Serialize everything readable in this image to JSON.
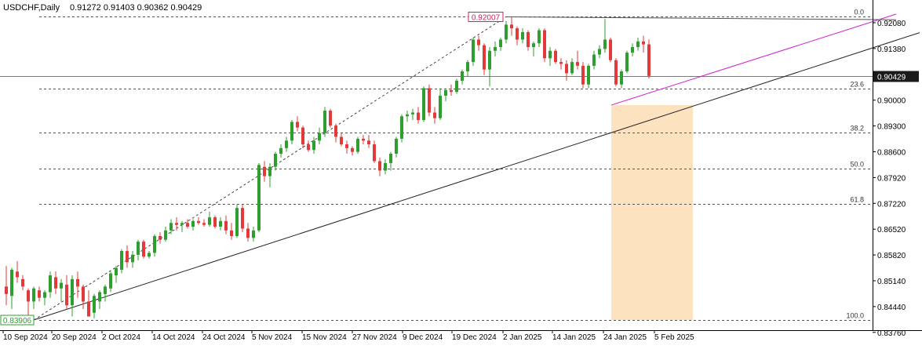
{
  "header": {
    "symbol_timeframe": "USDCHF,Daily",
    "ohlc": "0.91272 0.91403 0.90362 0.90429"
  },
  "colors": {
    "bull": "#2e9e2e",
    "bear": "#e03a3a",
    "grid_dash": "#555555",
    "trendline": "#222222",
    "channel": "#d020d0",
    "zone": "#fde2c0",
    "price_label_bg": "#1a1a1a"
  },
  "price_axis": {
    "ticks": [
      "0.92080",
      "0.91380",
      "0.90680",
      "0.90000",
      "0.89300",
      "0.88600",
      "0.87920",
      "0.87220",
      "0.86520",
      "0.85820",
      "0.85140",
      "0.84440",
      "0.83760"
    ]
  },
  "time_axis": {
    "ticks": [
      "10 Sep 2024",
      "20 Sep 2024",
      "2 Oct 2024",
      "14 Oct 2024",
      "24 Oct 2024",
      "5 Nov 2024",
      "15 Nov 2024",
      "27 Nov 2024",
      "9 Dec 2024",
      "19 Dec 2024",
      "2 Jan 2025",
      "14 Jan 2025",
      "24 Jan 2025",
      "5 Feb 2025"
    ]
  },
  "annotations": {
    "high_label": "0.92007",
    "low_label": "0.83906",
    "current_price": "0.90429"
  },
  "fibonacci": {
    "levels": [
      {
        "label": "0.0",
        "price": 0.92007
      },
      {
        "label": "23.6",
        "price": 0.90095
      },
      {
        "label": "38.2",
        "price": 0.88912
      },
      {
        "label": "50.0",
        "price": 0.87957
      },
      {
        "label": "61.8",
        "price": 0.87001
      },
      {
        "label": "100.0",
        "price": 0.83906
      }
    ]
  },
  "chart_data": {
    "type": "candlestick",
    "title": "USDCHF,Daily",
    "ylim": [
      0.837,
      0.9225
    ],
    "x_range": [
      "2024-09-10",
      "2025-02-11"
    ],
    "current_price": 0.90429,
    "candles": [
      {
        "o": 0.848,
        "h": 0.8535,
        "l": 0.843,
        "c": 0.846
      },
      {
        "o": 0.8455,
        "h": 0.853,
        "l": 0.842,
        "c": 0.8525
      },
      {
        "o": 0.852,
        "h": 0.8548,
        "l": 0.849,
        "c": 0.8505
      },
      {
        "o": 0.85,
        "h": 0.851,
        "l": 0.847,
        "c": 0.848
      },
      {
        "o": 0.847,
        "h": 0.8475,
        "l": 0.839,
        "c": 0.844
      },
      {
        "o": 0.844,
        "h": 0.848,
        "l": 0.842,
        "c": 0.8475
      },
      {
        "o": 0.847,
        "h": 0.848,
        "l": 0.844,
        "c": 0.845
      },
      {
        "o": 0.845,
        "h": 0.847,
        "l": 0.843,
        "c": 0.8465
      },
      {
        "o": 0.8465,
        "h": 0.852,
        "l": 0.845,
        "c": 0.851
      },
      {
        "o": 0.8505,
        "h": 0.852,
        "l": 0.846,
        "c": 0.8475
      },
      {
        "o": 0.8475,
        "h": 0.85,
        "l": 0.844,
        "c": 0.849
      },
      {
        "o": 0.8485,
        "h": 0.851,
        "l": 0.842,
        "c": 0.843
      },
      {
        "o": 0.843,
        "h": 0.851,
        "l": 0.84,
        "c": 0.85
      },
      {
        "o": 0.85,
        "h": 0.852,
        "l": 0.845,
        "c": 0.848
      },
      {
        "o": 0.848,
        "h": 0.8485,
        "l": 0.842,
        "c": 0.844
      },
      {
        "o": 0.844,
        "h": 0.847,
        "l": 0.84,
        "c": 0.84
      },
      {
        "o": 0.841,
        "h": 0.846,
        "l": 0.8395,
        "c": 0.8455
      },
      {
        "o": 0.844,
        "h": 0.847,
        "l": 0.842,
        "c": 0.8465
      },
      {
        "o": 0.846,
        "h": 0.8485,
        "l": 0.844,
        "c": 0.848
      },
      {
        "o": 0.8475,
        "h": 0.852,
        "l": 0.8465,
        "c": 0.8515
      },
      {
        "o": 0.851,
        "h": 0.8535,
        "l": 0.849,
        "c": 0.853
      },
      {
        "o": 0.8525,
        "h": 0.858,
        "l": 0.8515,
        "c": 0.8575
      },
      {
        "o": 0.8575,
        "h": 0.859,
        "l": 0.853,
        "c": 0.8545
      },
      {
        "o": 0.8545,
        "h": 0.8575,
        "l": 0.853,
        "c": 0.8565
      },
      {
        "o": 0.8565,
        "h": 0.8605,
        "l": 0.855,
        "c": 0.86
      },
      {
        "o": 0.86,
        "h": 0.8605,
        "l": 0.8555,
        "c": 0.856
      },
      {
        "o": 0.856,
        "h": 0.8575,
        "l": 0.8555,
        "c": 0.857
      },
      {
        "o": 0.857,
        "h": 0.862,
        "l": 0.856,
        "c": 0.8615
      },
      {
        "o": 0.8615,
        "h": 0.8625,
        "l": 0.8595,
        "c": 0.8605
      },
      {
        "o": 0.8605,
        "h": 0.864,
        "l": 0.86,
        "c": 0.863
      },
      {
        "o": 0.863,
        "h": 0.866,
        "l": 0.862,
        "c": 0.865
      },
      {
        "o": 0.865,
        "h": 0.8665,
        "l": 0.863,
        "c": 0.8645
      },
      {
        "o": 0.8645,
        "h": 0.8655,
        "l": 0.8625,
        "c": 0.865
      },
      {
        "o": 0.865,
        "h": 0.866,
        "l": 0.8635,
        "c": 0.864
      },
      {
        "o": 0.864,
        "h": 0.866,
        "l": 0.863,
        "c": 0.8655
      },
      {
        "o": 0.8655,
        "h": 0.8665,
        "l": 0.8645,
        "c": 0.865
      },
      {
        "o": 0.865,
        "h": 0.866,
        "l": 0.864,
        "c": 0.8645
      },
      {
        "o": 0.8645,
        "h": 0.868,
        "l": 0.864,
        "c": 0.8665
      },
      {
        "o": 0.8665,
        "h": 0.867,
        "l": 0.8635,
        "c": 0.864
      },
      {
        "o": 0.864,
        "h": 0.8665,
        "l": 0.863,
        "c": 0.8655
      },
      {
        "o": 0.8655,
        "h": 0.867,
        "l": 0.862,
        "c": 0.863
      },
      {
        "o": 0.863,
        "h": 0.865,
        "l": 0.8605,
        "c": 0.8615
      },
      {
        "o": 0.8615,
        "h": 0.87,
        "l": 0.861,
        "c": 0.869
      },
      {
        "o": 0.869,
        "h": 0.87,
        "l": 0.8625,
        "c": 0.8635
      },
      {
        "o": 0.8635,
        "h": 0.865,
        "l": 0.86,
        "c": 0.861
      },
      {
        "o": 0.861,
        "h": 0.864,
        "l": 0.86,
        "c": 0.863
      },
      {
        "o": 0.863,
        "h": 0.881,
        "l": 0.8625,
        "c": 0.8805
      },
      {
        "o": 0.88,
        "h": 0.8815,
        "l": 0.876,
        "c": 0.8775
      },
      {
        "o": 0.8775,
        "h": 0.881,
        "l": 0.8745,
        "c": 0.88
      },
      {
        "o": 0.88,
        "h": 0.884,
        "l": 0.879,
        "c": 0.8835
      },
      {
        "o": 0.8835,
        "h": 0.886,
        "l": 0.8825,
        "c": 0.885
      },
      {
        "o": 0.885,
        "h": 0.888,
        "l": 0.884,
        "c": 0.887
      },
      {
        "o": 0.887,
        "h": 0.8925,
        "l": 0.886,
        "c": 0.892
      },
      {
        "o": 0.892,
        "h": 0.8935,
        "l": 0.8895,
        "c": 0.8905
      },
      {
        "o": 0.8905,
        "h": 0.891,
        "l": 0.885,
        "c": 0.886
      },
      {
        "o": 0.886,
        "h": 0.887,
        "l": 0.884,
        "c": 0.8845
      },
      {
        "o": 0.8845,
        "h": 0.888,
        "l": 0.8835,
        "c": 0.887
      },
      {
        "o": 0.887,
        "h": 0.8905,
        "l": 0.886,
        "c": 0.889
      },
      {
        "o": 0.889,
        "h": 0.896,
        "l": 0.888,
        "c": 0.895
      },
      {
        "o": 0.895,
        "h": 0.8955,
        "l": 0.8905,
        "c": 0.891
      },
      {
        "o": 0.891,
        "h": 0.8915,
        "l": 0.8865,
        "c": 0.888
      },
      {
        "o": 0.888,
        "h": 0.889,
        "l": 0.8855,
        "c": 0.886
      },
      {
        "o": 0.886,
        "h": 0.887,
        "l": 0.8835,
        "c": 0.885
      },
      {
        "o": 0.885,
        "h": 0.8855,
        "l": 0.883,
        "c": 0.884
      },
      {
        "o": 0.884,
        "h": 0.888,
        "l": 0.8835,
        "c": 0.8875
      },
      {
        "o": 0.8875,
        "h": 0.8885,
        "l": 0.886,
        "c": 0.887
      },
      {
        "o": 0.887,
        "h": 0.8885,
        "l": 0.885,
        "c": 0.886
      },
      {
        "o": 0.886,
        "h": 0.887,
        "l": 0.881,
        "c": 0.8815
      },
      {
        "o": 0.8815,
        "h": 0.8825,
        "l": 0.8775,
        "c": 0.879
      },
      {
        "o": 0.879,
        "h": 0.882,
        "l": 0.878,
        "c": 0.881
      },
      {
        "o": 0.881,
        "h": 0.884,
        "l": 0.879,
        "c": 0.8835
      },
      {
        "o": 0.8835,
        "h": 0.888,
        "l": 0.8825,
        "c": 0.8875
      },
      {
        "o": 0.8875,
        "h": 0.894,
        "l": 0.8865,
        "c": 0.8935
      },
      {
        "o": 0.8935,
        "h": 0.895,
        "l": 0.892,
        "c": 0.894
      },
      {
        "o": 0.894,
        "h": 0.8955,
        "l": 0.8925,
        "c": 0.8945
      },
      {
        "o": 0.8945,
        "h": 0.896,
        "l": 0.8915,
        "c": 0.8925
      },
      {
        "o": 0.8925,
        "h": 0.9015,
        "l": 0.892,
        "c": 0.901
      },
      {
        "o": 0.901,
        "h": 0.902,
        "l": 0.8935,
        "c": 0.8945
      },
      {
        "o": 0.8945,
        "h": 0.896,
        "l": 0.8915,
        "c": 0.893
      },
      {
        "o": 0.893,
        "h": 0.901,
        "l": 0.8925,
        "c": 0.899
      },
      {
        "o": 0.899,
        "h": 0.901,
        "l": 0.8975,
        "c": 0.9005
      },
      {
        "o": 0.9005,
        "h": 0.902,
        "l": 0.899,
        "c": 0.9
      },
      {
        "o": 0.9,
        "h": 0.9035,
        "l": 0.8995,
        "c": 0.903
      },
      {
        "o": 0.903,
        "h": 0.906,
        "l": 0.902,
        "c": 0.9055
      },
      {
        "o": 0.9055,
        "h": 0.9085,
        "l": 0.904,
        "c": 0.908
      },
      {
        "o": 0.908,
        "h": 0.9145,
        "l": 0.907,
        "c": 0.914
      },
      {
        "o": 0.914,
        "h": 0.915,
        "l": 0.911,
        "c": 0.9125
      },
      {
        "o": 0.9125,
        "h": 0.913,
        "l": 0.9045,
        "c": 0.906
      },
      {
        "o": 0.906,
        "h": 0.912,
        "l": 0.9015,
        "c": 0.911
      },
      {
        "o": 0.911,
        "h": 0.9135,
        "l": 0.9095,
        "c": 0.912
      },
      {
        "o": 0.912,
        "h": 0.9145,
        "l": 0.911,
        "c": 0.914
      },
      {
        "o": 0.914,
        "h": 0.919,
        "l": 0.913,
        "c": 0.918
      },
      {
        "o": 0.918,
        "h": 0.9201,
        "l": 0.915,
        "c": 0.917
      },
      {
        "o": 0.917,
        "h": 0.9175,
        "l": 0.9125,
        "c": 0.914
      },
      {
        "o": 0.914,
        "h": 0.917,
        "l": 0.913,
        "c": 0.916
      },
      {
        "o": 0.916,
        "h": 0.9165,
        "l": 0.911,
        "c": 0.912
      },
      {
        "o": 0.912,
        "h": 0.9135,
        "l": 0.9095,
        "c": 0.913
      },
      {
        "o": 0.913,
        "h": 0.917,
        "l": 0.912,
        "c": 0.9165
      },
      {
        "o": 0.9165,
        "h": 0.917,
        "l": 0.908,
        "c": 0.909
      },
      {
        "o": 0.909,
        "h": 0.912,
        "l": 0.907,
        "c": 0.911
      },
      {
        "o": 0.911,
        "h": 0.9115,
        "l": 0.9075,
        "c": 0.908
      },
      {
        "o": 0.908,
        "h": 0.909,
        "l": 0.906,
        "c": 0.9075
      },
      {
        "o": 0.9075,
        "h": 0.9085,
        "l": 0.903,
        "c": 0.905
      },
      {
        "o": 0.905,
        "h": 0.909,
        "l": 0.9045,
        "c": 0.908
      },
      {
        "o": 0.908,
        "h": 0.911,
        "l": 0.906,
        "c": 0.907
      },
      {
        "o": 0.907,
        "h": 0.908,
        "l": 0.901,
        "c": 0.902
      },
      {
        "o": 0.902,
        "h": 0.9075,
        "l": 0.901,
        "c": 0.907
      },
      {
        "o": 0.907,
        "h": 0.911,
        "l": 0.906,
        "c": 0.91
      },
      {
        "o": 0.91,
        "h": 0.9125,
        "l": 0.909,
        "c": 0.9115
      },
      {
        "o": 0.9115,
        "h": 0.9195,
        "l": 0.9105,
        "c": 0.914
      },
      {
        "o": 0.914,
        "h": 0.9145,
        "l": 0.908,
        "c": 0.9085
      },
      {
        "o": 0.9085,
        "h": 0.909,
        "l": 0.9015,
        "c": 0.902
      },
      {
        "o": 0.902,
        "h": 0.906,
        "l": 0.901,
        "c": 0.9055
      },
      {
        "o": 0.9055,
        "h": 0.911,
        "l": 0.905,
        "c": 0.9105
      },
      {
        "o": 0.9105,
        "h": 0.913,
        "l": 0.9095,
        "c": 0.912
      },
      {
        "o": 0.912,
        "h": 0.9145,
        "l": 0.911,
        "c": 0.9135
      },
      {
        "o": 0.9135,
        "h": 0.915,
        "l": 0.9105,
        "c": 0.9127
      },
      {
        "o": 0.91272,
        "h": 0.91403,
        "l": 0.90362,
        "c": 0.90429
      }
    ]
  }
}
